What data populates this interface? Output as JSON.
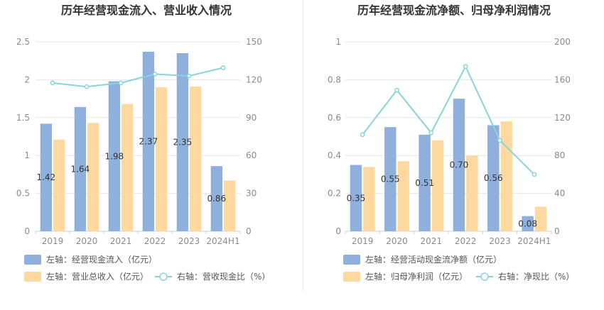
{
  "chart_data": [
    {
      "type": "bar",
      "title": "历年经营现金流入、营业收入情况",
      "categories": [
        "2019",
        "2020",
        "2021",
        "2022",
        "2023",
        "2024H1"
      ],
      "left_axis": {
        "min": 0,
        "max": 2.5,
        "ticks": [
          "0",
          "0.5",
          "1",
          "1.5",
          "2",
          "2.5"
        ]
      },
      "right_axis": {
        "min": 0,
        "max": 150,
        "ticks": [
          "0",
          "30",
          "60",
          "90",
          "120",
          "150"
        ]
      },
      "series": [
        {
          "name": "左轴：经营现金流入（亿元）",
          "kind": "bar",
          "axis": "left",
          "color": "#8fafdc",
          "values": [
            1.42,
            1.64,
            1.98,
            2.37,
            2.35,
            0.86
          ],
          "labels": [
            "1.42",
            "1.64",
            "1.98",
            "2.37",
            "2.35",
            "0.86"
          ]
        },
        {
          "name": "左轴：营业总收入（亿元）",
          "kind": "bar",
          "axis": "left",
          "color": "#fdd99f",
          "values": [
            1.21,
            1.43,
            1.68,
            1.9,
            1.91,
            0.67
          ]
        },
        {
          "name": "右轴：营收现金比（%）",
          "kind": "line",
          "axis": "right",
          "color": "#88d4dc",
          "values": [
            117.5,
            114.5,
            117.5,
            124.5,
            123,
            129.5
          ]
        }
      ],
      "grid": true,
      "legend_position": "bottom"
    },
    {
      "type": "bar",
      "title": "历年经营现金流净额、归母净利润情况",
      "categories": [
        "2019",
        "2020",
        "2021",
        "2022",
        "2023",
        "2024H1"
      ],
      "left_axis": {
        "min": 0,
        "max": 1,
        "ticks": [
          "0",
          "0.2",
          "0.4",
          "0.6",
          "0.8",
          "1"
        ]
      },
      "right_axis": {
        "min": 0,
        "max": 200,
        "ticks": [
          "0",
          "40",
          "80",
          "120",
          "160",
          "200"
        ]
      },
      "series": [
        {
          "name": "左轴：经营活动现金流净额（亿元）",
          "kind": "bar",
          "axis": "left",
          "color": "#8fafdc",
          "values": [
            0.35,
            0.55,
            0.51,
            0.7,
            0.56,
            0.08
          ],
          "labels": [
            "0.35",
            "0.55",
            "0.51",
            "0.70",
            "0.56",
            "0.08"
          ]
        },
        {
          "name": "左轴：归母净利润（亿元）",
          "kind": "bar",
          "axis": "left",
          "color": "#fdd99f",
          "values": [
            0.34,
            0.37,
            0.48,
            0.4,
            0.58,
            0.13
          ]
        },
        {
          "name": "右轴：净现比（%）",
          "kind": "line",
          "axis": "right",
          "color": "#88d4dc",
          "values": [
            102,
            149,
            104,
            174,
            96,
            60
          ]
        }
      ],
      "grid": true,
      "legend_position": "bottom"
    }
  ]
}
